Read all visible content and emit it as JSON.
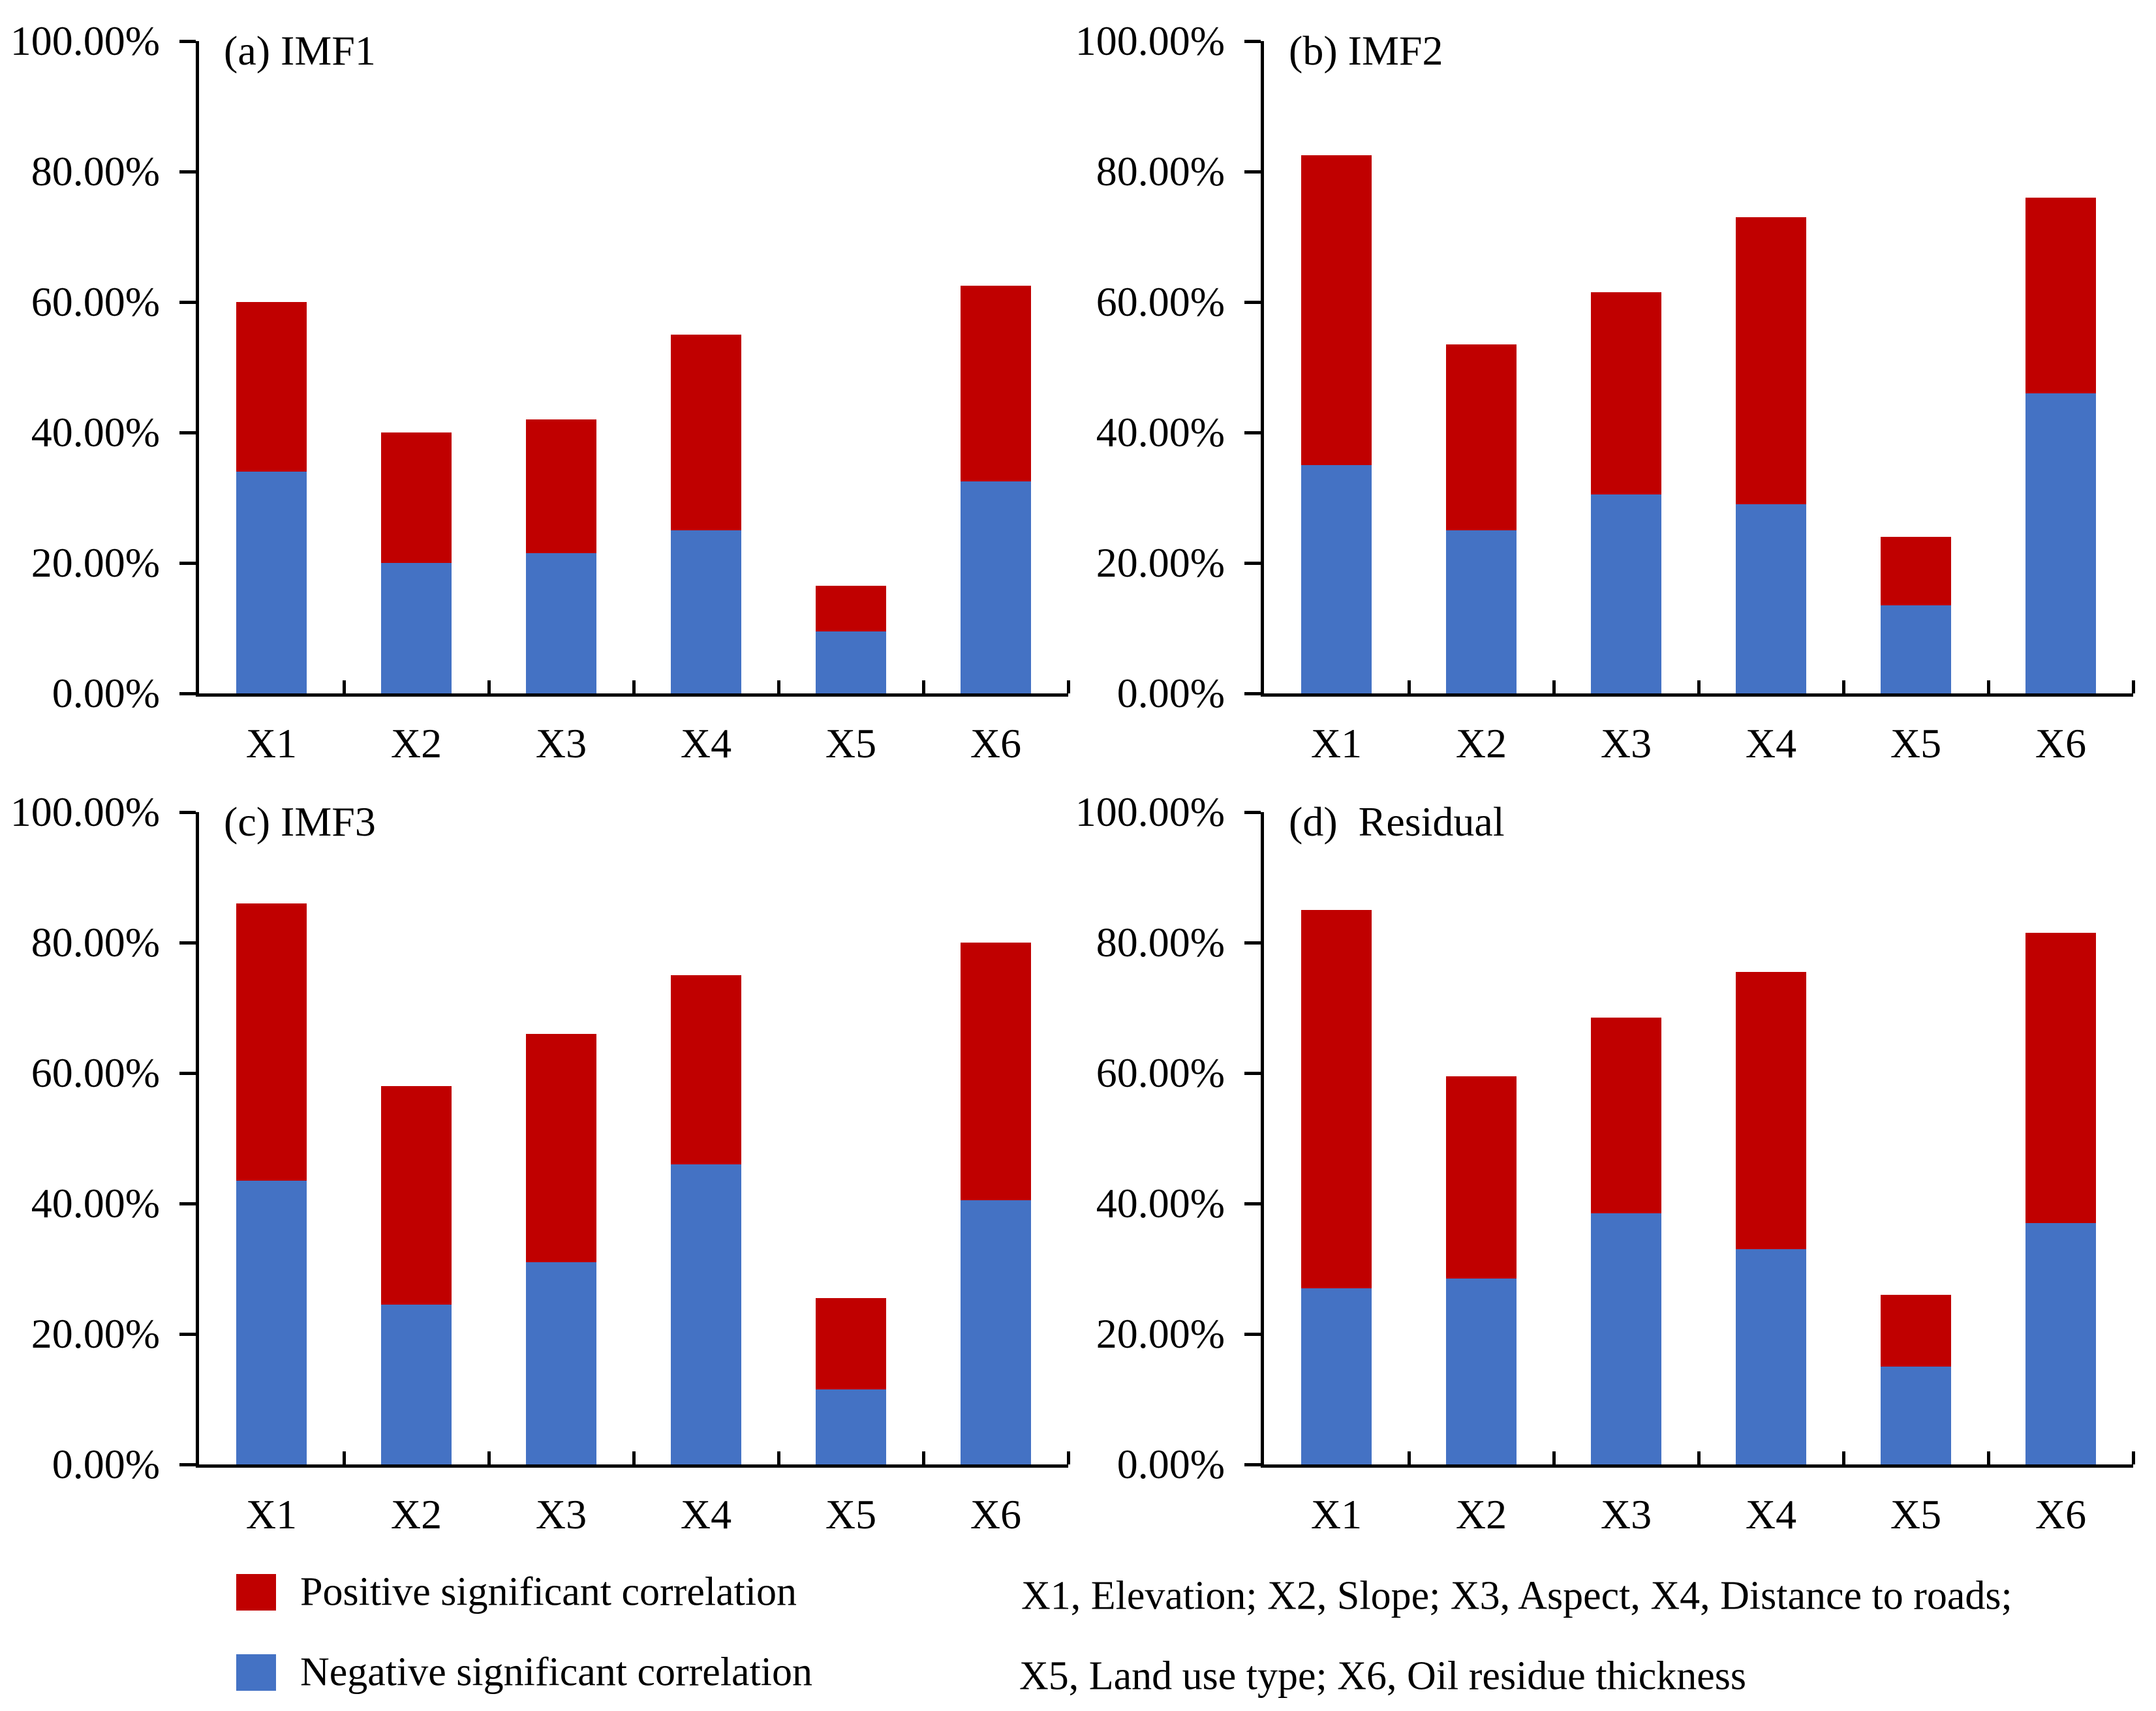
{
  "figure": {
    "background": "#FFFFFF",
    "text_color": "#000000",
    "axis_color": "#000000"
  },
  "colors": {
    "positive": "#C00000",
    "negative": "#4472C4"
  },
  "legend": {
    "items": [
      {
        "label": "Positive significant correlation",
        "color": "#C00000"
      },
      {
        "label": "Negative significant correlation",
        "color": "#4472C4"
      }
    ]
  },
  "footnote": {
    "line1": "X1, Elevation; X2, Slope; X3, Aspect, X4, Distance to roads;",
    "line2": "X5, Land use type; X6, Oil residue thickness"
  },
  "chart_data": [
    {
      "id": "a",
      "type": "bar",
      "stacked": true,
      "title": "(a) IMF1",
      "ylim": [
        0,
        100
      ],
      "grid": false,
      "ytick_labels": [
        "100.00%",
        "80.00%",
        "60.00%",
        "40.00%",
        "20.00%",
        "0.00%"
      ],
      "categories": [
        "X1",
        "X2",
        "X3",
        "X4",
        "X5",
        "X6"
      ],
      "series": [
        {
          "name": "Negative significant correlation",
          "color": "#4472C4",
          "values": [
            34,
            20,
            21.5,
            25,
            9.5,
            32.5
          ]
        },
        {
          "name": "Positive significant correlation",
          "color": "#C00000",
          "values": [
            26,
            20,
            20.5,
            30,
            7,
            30
          ]
        }
      ]
    },
    {
      "id": "b",
      "type": "bar",
      "stacked": true,
      "title": "(b) IMF2",
      "ylim": [
        0,
        100
      ],
      "grid": false,
      "ytick_labels": [
        "100.00%",
        "80.00%",
        "60.00%",
        "40.00%",
        "20.00%",
        "0.00%"
      ],
      "categories": [
        "X1",
        "X2",
        "X3",
        "X4",
        "X5",
        "X6"
      ],
      "series": [
        {
          "name": "Negative significant correlation",
          "color": "#4472C4",
          "values": [
            35,
            25,
            30.5,
            29,
            13.5,
            46
          ]
        },
        {
          "name": "Positive significant correlation",
          "color": "#C00000",
          "values": [
            47.5,
            28.5,
            31,
            44,
            10.5,
            30
          ]
        }
      ]
    },
    {
      "id": "c",
      "type": "bar",
      "stacked": true,
      "title": "(c) IMF3",
      "ylim": [
        0,
        100
      ],
      "grid": false,
      "ytick_labels": [
        "100.00%",
        "80.00%",
        "60.00%",
        "40.00%",
        "20.00%",
        "0.00%"
      ],
      "categories": [
        "X1",
        "X2",
        "X3",
        "X4",
        "X5",
        "X6"
      ],
      "series": [
        {
          "name": "Negative significant correlation",
          "color": "#4472C4",
          "values": [
            43.5,
            24.5,
            31,
            46,
            11.5,
            40.5
          ]
        },
        {
          "name": "Positive significant correlation",
          "color": "#C00000",
          "values": [
            42.5,
            33.5,
            35,
            29,
            14,
            39.5
          ]
        }
      ]
    },
    {
      "id": "d",
      "type": "bar",
      "stacked": true,
      "title": "(d)  Residual",
      "ylim": [
        0,
        100
      ],
      "grid": false,
      "ytick_labels": [
        "100.00%",
        "80.00%",
        "60.00%",
        "40.00%",
        "20.00%",
        "0.00%"
      ],
      "categories": [
        "X1",
        "X2",
        "X3",
        "X4",
        "X5",
        "X6"
      ],
      "series": [
        {
          "name": "Negative significant correlation",
          "color": "#4472C4",
          "values": [
            27,
            28.5,
            38.5,
            33,
            15,
            37
          ]
        },
        {
          "name": "Positive significant correlation",
          "color": "#C00000",
          "values": [
            58,
            31,
            30,
            42.5,
            11,
            44.5
          ]
        }
      ]
    }
  ]
}
